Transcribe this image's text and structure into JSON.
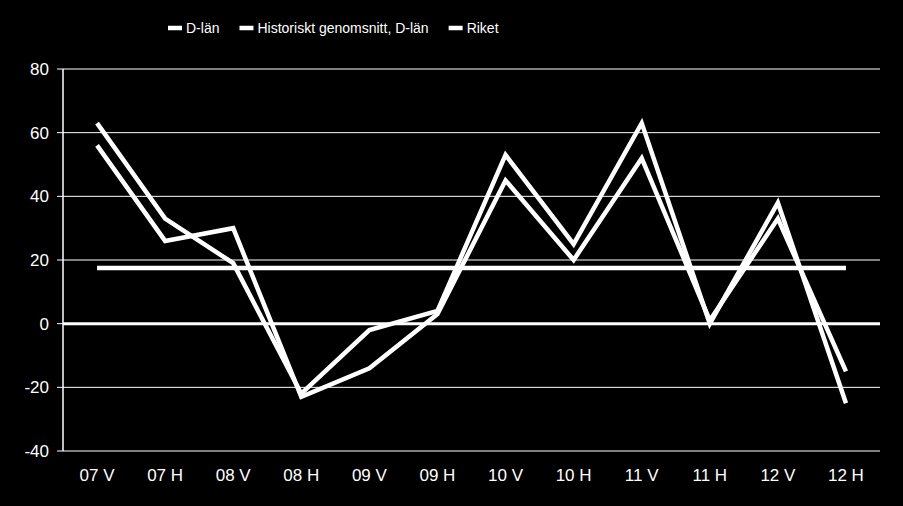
{
  "chart_data": {
    "type": "line",
    "categories": [
      "07 V",
      "07 H",
      "08 V",
      "08 H",
      "09 V",
      "09 H",
      "10 V",
      "10 H",
      "11 V",
      "11 H",
      "12 V",
      "12 H"
    ],
    "series": [
      {
        "name": "D-län",
        "color": "#ffffff",
        "values": [
          63,
          33,
          19,
          -22,
          -2,
          4,
          53,
          25,
          63,
          0,
          38,
          -25
        ]
      },
      {
        "name": "Historiskt genomsnitt, D-län",
        "color": "#ffffff",
        "values": [
          17.5,
          17.5,
          17.5,
          17.5,
          17.5,
          17.5,
          17.5,
          17.5,
          17.5,
          17.5,
          17.5,
          17.5
        ]
      },
      {
        "name": "Riket",
        "color": "#ffffff",
        "values": [
          56,
          26,
          30,
          -23,
          -14,
          3,
          45,
          20,
          52,
          1,
          33,
          -15
        ]
      }
    ],
    "ylim": [
      -40,
      80
    ],
    "yticks": [
      -40,
      -20,
      0,
      20,
      40,
      60,
      80
    ],
    "grid": true,
    "legend": "top"
  }
}
